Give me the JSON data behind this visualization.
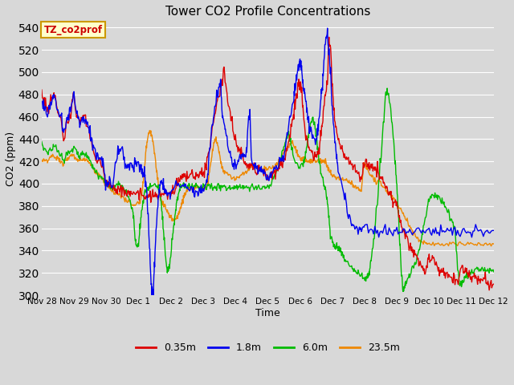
{
  "title": "Tower CO2 Profile Concentrations",
  "xlabel": "Time",
  "ylabel": "CO2 (ppm)",
  "ylim": [
    300,
    545
  ],
  "yticks": [
    300,
    320,
    340,
    360,
    380,
    400,
    420,
    440,
    460,
    480,
    500,
    520,
    540
  ],
  "annotation_text": "TZ_co2prof",
  "annotation_color": "#cc0000",
  "annotation_bg": "#ffffcc",
  "annotation_border": "#cc9900",
  "colors": {
    "0.35m": "#dd0000",
    "1.8m": "#0000ee",
    "6.0m": "#00bb00",
    "23.5m": "#ee8800"
  },
  "series_labels": [
    "0.35m",
    "1.8m",
    "6.0m",
    "23.5m"
  ],
  "bg_color": "#d8d8d8",
  "plot_bg": "#d8d8d8",
  "grid_color": "#ffffff",
  "x_start": 0,
  "x_end": 14,
  "xtick_positions": [
    0,
    1,
    2,
    3,
    4,
    5,
    6,
    7,
    8,
    9,
    10,
    11,
    12,
    13,
    14
  ],
  "xtick_labels": [
    "Nov 28",
    "Nov 29",
    "Nov 30",
    "Dec 1",
    "Dec 2",
    "Dec 3",
    "Dec 4",
    "Dec 5",
    "Dec 6",
    "Dec 7",
    "Dec 8",
    "Dec 9",
    "Dec 10",
    "Dec 11",
    "Dec 12"
  ]
}
